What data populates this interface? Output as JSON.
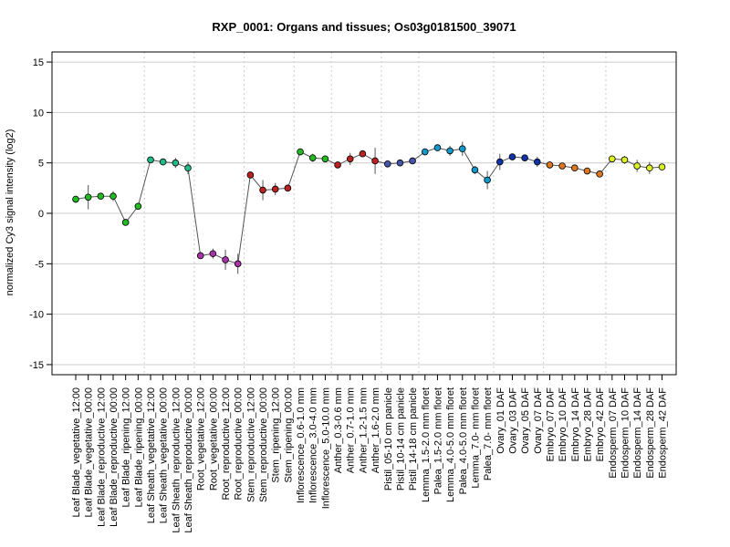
{
  "chart_data": {
    "type": "line",
    "title": "RXP_0001: Organs and tissues; Os03g0181500_39071",
    "xlabel": "",
    "ylabel": "normalized Cy3 signal intensity (log2)",
    "ylim": [
      -16,
      16
    ],
    "yticks": [
      -15,
      -10,
      -5,
      0,
      5,
      10,
      15
    ],
    "grid": true,
    "categories": [
      "Leaf Blade_vegetative_12:00",
      "Leaf Blade_vegetative_00:00",
      "Leaf Blade_reproductive_12:00",
      "Leaf Blade_reproductive_00:00",
      "Leaf Blade_ripening_12:00",
      "Leaf Blade_ripening_00:00",
      "Leaf Sheath_vegetative_12:00",
      "Leaf Sheath_vegetative_00:00",
      "Leaf Sheath_reproductive_12:00",
      "Leaf Sheath_reproductive_00:00",
      "Root_vegetative_12:00",
      "Root_vegetative_00:00",
      "Root_reproductive_12:00",
      "Root_reproductive_00:00",
      "Stem_reproductive_12:00",
      "Stem_reproductive_00:00",
      "Stem_ripening_12:00",
      "Stem_ripening_00:00",
      "Inflorescence_0.6-1.0 mm",
      "Inflorescence_3.0-4.0 mm",
      "Inflorescence_5.0-10.0 mm",
      "Anther_0.3-0.6 mm",
      "Anther_0.7-1.0 mm",
      "Anther_1.2-1.5 mm",
      "Anther_1.6-2.0 mm",
      "Pistil_05-10 cm panicle",
      "Pistil_10-14 cm panicle",
      "Pistil_14-18 cm panicle",
      "Lemma_1.5-2.0 mm floret",
      "Palea_1.5-2.0 mm floret",
      "Lemma_4.0-5.0 mm floret",
      "Palea_4.0-5.0 mm floret",
      "Lemma_7.0- mm floret",
      "Palea_7.0- mm floret",
      "Ovary_01 DAF",
      "Ovary_03 DAF",
      "Ovary_05 DAF",
      "Ovary_07 DAF",
      "Embryo_07 DAF",
      "Embryo_10 DAF",
      "Embryo_14 DAF",
      "Embryo_28 DAF",
      "Embryo_42 DAF",
      "Endosperm_07 DAF",
      "Endosperm_10 DAF",
      "Endosperm_14 DAF",
      "Endosperm_28 DAF",
      "Endosperm_42 DAF"
    ],
    "values": [
      1.4,
      1.6,
      1.7,
      1.7,
      -0.9,
      0.7,
      5.3,
      5.1,
      5.0,
      4.5,
      -4.2,
      -4.0,
      -4.6,
      -5.0,
      3.8,
      2.3,
      2.4,
      2.5,
      6.1,
      5.5,
      5.4,
      4.8,
      5.4,
      5.9,
      5.2,
      4.9,
      5.0,
      5.2,
      6.1,
      6.5,
      6.2,
      6.4,
      4.3,
      3.3,
      5.1,
      5.6,
      5.5,
      5.1,
      4.8,
      4.7,
      4.5,
      4.2,
      3.9,
      5.4,
      5.3,
      4.7,
      4.5,
      4.6
    ],
    "error": [
      0.2,
      1.2,
      0.2,
      0.5,
      0.3,
      0.3,
      0.2,
      0.2,
      0.5,
      0.6,
      0.3,
      0.5,
      1.0,
      1.0,
      0.3,
      1.0,
      0.6,
      0.3,
      0.3,
      0.4,
      0.3,
      0.3,
      0.6,
      0.3,
      1.3,
      0.2,
      0.2,
      0.3,
      0.3,
      0.3,
      0.5,
      0.7,
      0.4,
      0.9,
      0.8,
      0.3,
      0.3,
      0.5,
      0.2,
      0.2,
      0.2,
      0.2,
      0.2,
      0.3,
      0.4,
      0.6,
      0.6,
      0.3
    ],
    "colors": [
      "#22bb22",
      "#22bb22",
      "#22bb22",
      "#22bb22",
      "#22bb22",
      "#22bb22",
      "#22bb88",
      "#22bb88",
      "#22bb88",
      "#22bb88",
      "#aa33aa",
      "#aa33aa",
      "#aa33aa",
      "#aa33aa",
      "#bb2222",
      "#bb2222",
      "#bb2222",
      "#bb2222",
      "#22bb22",
      "#22bb22",
      "#22bb22",
      "#bb2222",
      "#bb2222",
      "#bb2222",
      "#bb2222",
      "#4455aa",
      "#4455aa",
      "#4455aa",
      "#1199cc",
      "#1199cc",
      "#1199cc",
      "#1199cc",
      "#1199cc",
      "#1199cc",
      "#1133aa",
      "#1133aa",
      "#1133aa",
      "#1133aa",
      "#dd7722",
      "#dd7722",
      "#dd7722",
      "#dd7722",
      "#dd7722",
      "#ddee22",
      "#ddee22",
      "#ddee22",
      "#ddee22",
      "#ddee22"
    ],
    "group_boundaries_after": [
      5,
      9,
      13,
      17,
      20,
      24,
      27,
      33,
      37,
      42
    ],
    "line_color": "#555555",
    "grid_color": "#cccccc"
  }
}
